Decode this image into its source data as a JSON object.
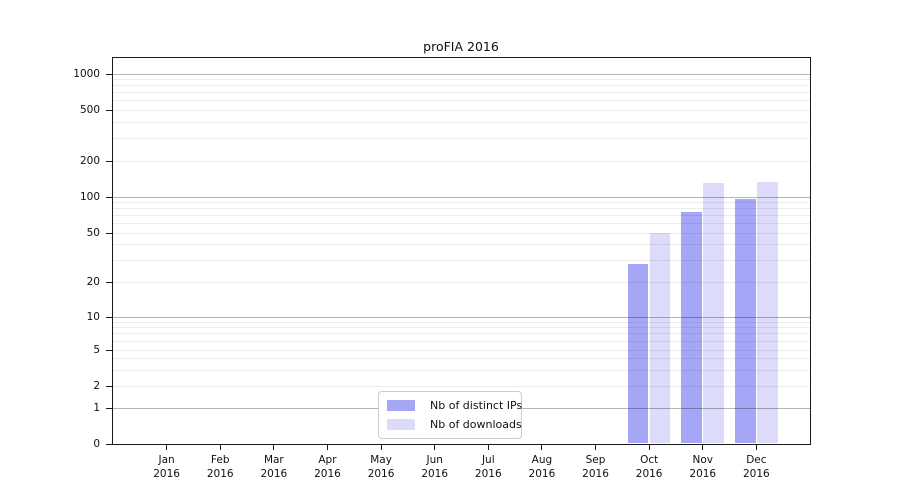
{
  "chart_data": {
    "type": "bar",
    "title": "proFIA 2016",
    "categories": [
      "Jan",
      "Feb",
      "Mar",
      "Apr",
      "May",
      "Jun",
      "Jul",
      "Aug",
      "Sep",
      "Oct",
      "Nov",
      "Dec"
    ],
    "category_sub_label": "2016",
    "series": [
      {
        "name": "Nb of distinct IPs",
        "color": "#a6a6f7",
        "values": [
          0,
          0,
          0,
          0,
          0,
          0,
          0,
          0,
          0,
          28,
          75,
          97
        ]
      },
      {
        "name": "Nb of downloads",
        "color": "#dcdcfa",
        "values": [
          0,
          0,
          0,
          0,
          0,
          0,
          0,
          0,
          0,
          50,
          130,
          134
        ]
      }
    ],
    "y_ticks": [
      0,
      1,
      2,
      5,
      10,
      20,
      50,
      100,
      200,
      500,
      1000
    ],
    "y_major_gridlines": [
      1,
      10,
      100,
      1000
    ],
    "y_minor_gridlines": [
      2,
      3,
      4,
      5,
      6,
      7,
      8,
      9,
      20,
      30,
      40,
      50,
      60,
      70,
      80,
      90,
      200,
      300,
      400,
      500,
      600,
      700,
      800,
      900
    ],
    "ylim": [
      0,
      1400
    ],
    "scale": "symlog",
    "grid": true,
    "legend_position": "lower center",
    "xlabel": "",
    "ylabel": ""
  },
  "colors": {
    "bar_distinct_ips": "#a6a6f7",
    "bar_downloads": "#dcdcfa",
    "major_grid": "rgba(0,0,0,0.29)",
    "minor_grid": "rgba(0,0,0,0.075)",
    "spine": "#1a1a1a",
    "legend_border": "#cccccc",
    "text": "#111111"
  }
}
